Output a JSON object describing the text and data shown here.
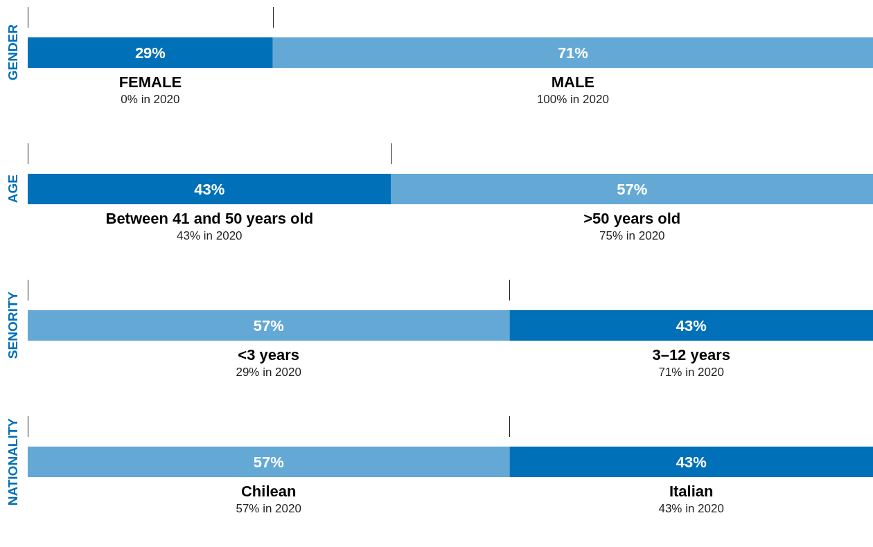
{
  "chart_data": [
    {
      "type": "bar",
      "orientation": "horizontal",
      "stacked": true,
      "ylabel": "GENDER",
      "categories": [
        null
      ],
      "tick_labels": false,
      "series": [
        {
          "name": "FEMALE",
          "color": "#0070b8",
          "values": [
            29
          ],
          "value_labels": [
            "29%"
          ]
        },
        {
          "name": "MALE",
          "color": "#64a8d6",
          "values": [
            71
          ],
          "value_labels": [
            "71%"
          ]
        }
      ],
      "annotations": [
        "0% in 2020",
        "100% in 2020"
      ]
    },
    {
      "type": "bar",
      "orientation": "horizontal",
      "stacked": true,
      "ylabel": "AGE",
      "categories": [
        null
      ],
      "tick_labels": false,
      "series": [
        {
          "name": "Between 41 and 50 years old",
          "color": "#0070b8",
          "values": [
            43
          ],
          "value_labels": [
            "43%"
          ]
        },
        {
          "name": ">50 years old",
          "color": "#64a8d6",
          "values": [
            57
          ],
          "value_labels": [
            "57%"
          ]
        }
      ],
      "annotations": [
        "43% in 2020",
        "75% in 2020"
      ]
    },
    {
      "type": "bar",
      "orientation": "horizontal",
      "stacked": true,
      "ylabel": "SENORITY",
      "categories": [
        null
      ],
      "tick_labels": false,
      "series": [
        {
          "name": "<3 years",
          "color": "#64a8d6",
          "values": [
            57
          ],
          "value_labels": [
            "57%"
          ]
        },
        {
          "name": "3–12 years",
          "color": "#0070b8",
          "values": [
            43
          ],
          "value_labels": [
            "43%"
          ]
        }
      ],
      "annotations": [
        "29% in 2020",
        "71% in 2020"
      ]
    },
    {
      "type": "bar",
      "orientation": "horizontal",
      "stacked": true,
      "ylabel": "NATIONALITY",
      "categories": [
        null
      ],
      "tick_labels": false,
      "series": [
        {
          "name": "Chilean",
          "color": "#64a8d6",
          "values": [
            57
          ],
          "value_labels": [
            "57%"
          ]
        },
        {
          "name": "Italian",
          "color": "#0070b8",
          "values": [
            43
          ],
          "value_labels": [
            "43%"
          ]
        }
      ],
      "annotations": [
        "57% in 2020",
        "43% in 2020"
      ]
    }
  ]
}
